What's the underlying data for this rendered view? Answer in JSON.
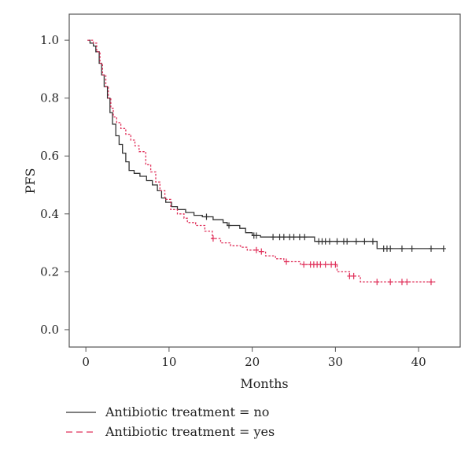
{
  "chart_data": {
    "type": "line",
    "title": "",
    "xlabel": "Months",
    "ylabel": "PFS",
    "xlim": [
      -2,
      45
    ],
    "ylim": [
      -0.06,
      1.09
    ],
    "x_ticks": [
      0,
      10,
      20,
      30,
      40
    ],
    "x_tick_labels": [
      "0",
      "10",
      "20",
      "30",
      "40"
    ],
    "y_ticks": [
      0.0,
      0.2,
      0.4,
      0.6,
      0.8,
      1.0
    ],
    "y_tick_labels": [
      "0.0",
      "0.2",
      "0.4",
      "0.6",
      "0.8",
      "1.0"
    ],
    "grid": false,
    "legend_position": "bottom-left",
    "series": [
      {
        "name": "Antibiotic treatment = no",
        "color": "#333333",
        "dash": "solid",
        "steps": [
          [
            0.2,
            1.0
          ],
          [
            0.5,
            0.99
          ],
          [
            0.9,
            0.98
          ],
          [
            1.2,
            0.96
          ],
          [
            1.6,
            0.92
          ],
          [
            1.9,
            0.88
          ],
          [
            2.2,
            0.84
          ],
          [
            2.6,
            0.8
          ],
          [
            2.9,
            0.75
          ],
          [
            3.2,
            0.71
          ],
          [
            3.6,
            0.67
          ],
          [
            4.0,
            0.64
          ],
          [
            4.4,
            0.61
          ],
          [
            4.8,
            0.58
          ],
          [
            5.2,
            0.55
          ],
          [
            5.8,
            0.54
          ],
          [
            6.5,
            0.53
          ],
          [
            7.3,
            0.515
          ],
          [
            8.0,
            0.5
          ],
          [
            8.6,
            0.48
          ],
          [
            9.1,
            0.455
          ],
          [
            9.6,
            0.44
          ],
          [
            10.3,
            0.425
          ],
          [
            11.0,
            0.415
          ],
          [
            12.0,
            0.405
          ],
          [
            13.0,
            0.395
          ],
          [
            14.0,
            0.39
          ],
          [
            15.3,
            0.38
          ],
          [
            16.5,
            0.37
          ],
          [
            17.0,
            0.36
          ],
          [
            18.5,
            0.35
          ],
          [
            19.2,
            0.335
          ],
          [
            20.0,
            0.325
          ],
          [
            21.0,
            0.32
          ],
          [
            27.5,
            0.305
          ],
          [
            35.0,
            0.28
          ],
          [
            43.0,
            0.28
          ]
        ],
        "censor_x": [
          14.5,
          17.2,
          20.2,
          20.5,
          22.5,
          23.3,
          23.8,
          24.5,
          25.0,
          25.7,
          26.3,
          28.0,
          28.4,
          28.8,
          29.3,
          30.2,
          31.0,
          31.4,
          32.5,
          33.5,
          34.5,
          35.8,
          36.2,
          36.6,
          38.0,
          39.2,
          41.5,
          43.0
        ]
      },
      {
        "name": "Antibiotic treatment = yes",
        "color": "#e0305a",
        "dash": "dotted",
        "steps": [
          [
            0.2,
            1.0
          ],
          [
            0.9,
            0.99
          ],
          [
            1.3,
            0.96
          ],
          [
            1.7,
            0.92
          ],
          [
            2.0,
            0.88
          ],
          [
            2.4,
            0.84
          ],
          [
            2.7,
            0.8
          ],
          [
            3.0,
            0.765
          ],
          [
            3.3,
            0.735
          ],
          [
            3.7,
            0.715
          ],
          [
            4.2,
            0.695
          ],
          [
            4.8,
            0.675
          ],
          [
            5.4,
            0.655
          ],
          [
            5.9,
            0.635
          ],
          [
            6.4,
            0.615
          ],
          [
            7.2,
            0.57
          ],
          [
            7.8,
            0.545
          ],
          [
            8.4,
            0.51
          ],
          [
            8.9,
            0.48
          ],
          [
            9.5,
            0.45
          ],
          [
            10.2,
            0.415
          ],
          [
            11.0,
            0.4
          ],
          [
            11.8,
            0.385
          ],
          [
            12.2,
            0.37
          ],
          [
            13.2,
            0.36
          ],
          [
            14.3,
            0.34
          ],
          [
            15.2,
            0.315
          ],
          [
            16.2,
            0.3
          ],
          [
            17.4,
            0.29
          ],
          [
            18.6,
            0.285
          ],
          [
            19.4,
            0.275
          ],
          [
            20.7,
            0.27
          ],
          [
            21.6,
            0.255
          ],
          [
            22.8,
            0.245
          ],
          [
            23.8,
            0.235
          ],
          [
            25.8,
            0.225
          ],
          [
            30.2,
            0.2
          ],
          [
            31.7,
            0.185
          ],
          [
            33.0,
            0.165
          ],
          [
            42.0,
            0.165
          ]
        ],
        "censor_x": [
          15.3,
          20.5,
          21.1,
          24.1,
          26.2,
          27.0,
          27.4,
          27.8,
          28.2,
          28.8,
          29.5,
          30.0,
          31.7,
          32.2,
          35.0,
          36.6,
          38.0,
          38.6,
          41.5
        ]
      }
    ]
  }
}
